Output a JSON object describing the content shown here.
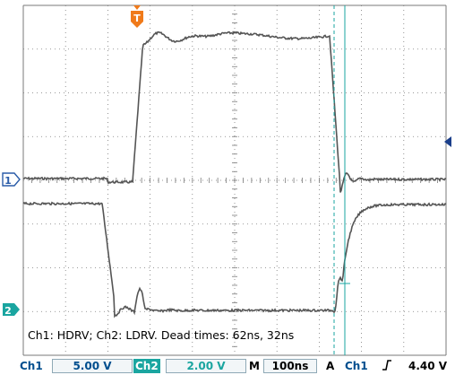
{
  "caption": "Ch1: HDRV; Ch2: LDRV. Dead times: 62ns, 32ns",
  "trigger_marker": "T",
  "channel_markers": {
    "ch1": "1",
    "ch2": "2"
  },
  "status_bar": {
    "ch1_label": "Ch1",
    "ch1_scale": "5.00 V",
    "ch2_label": "Ch2",
    "ch2_scale": "2.00 V",
    "timebase_label": "M",
    "timebase_value": "100ns",
    "trigger_mode": "A",
    "trigger_source": "Ch1",
    "trigger_slope_icon": "rising-edge-icon",
    "trigger_level": "4.40 V"
  },
  "colors": {
    "trace": "#555555",
    "grid": "#7a7a7a",
    "cursor": "#1aa5a0",
    "ch1_marker": "#2a5ca8",
    "ch2_marker": "#1aa5a0",
    "trigger_marker": "#f07a1a"
  }
}
